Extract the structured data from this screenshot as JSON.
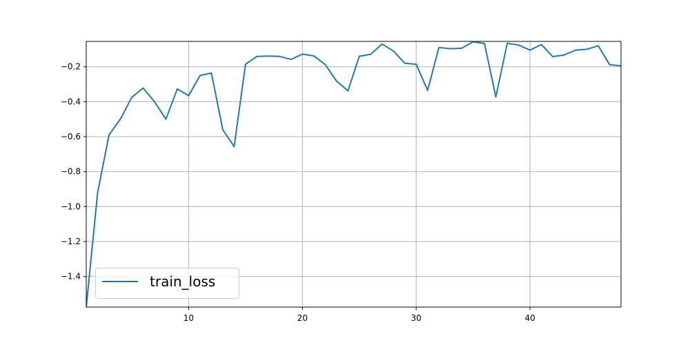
{
  "chart_data": {
    "type": "line",
    "title": "",
    "xlabel": "",
    "ylabel": "",
    "xlim": [
      1,
      48
    ],
    "ylim": [
      -1.575,
      -0.055
    ],
    "xticks": [
      10,
      20,
      30,
      40
    ],
    "yticks": [
      -1.4,
      -1.2,
      -1.0,
      -0.8,
      -0.6,
      -0.4,
      -0.2
    ],
    "ytick_labels": [
      "−1.4",
      "−1.2",
      "−1.0",
      "−0.8",
      "−0.6",
      "−0.4",
      "−0.2"
    ],
    "grid": true,
    "legend_position": "lower-left",
    "series": [
      {
        "name": "train_loss",
        "color": "#1f77b4",
        "x": [
          1,
          2,
          3,
          4,
          5,
          6,
          7,
          8,
          9,
          10,
          11,
          12,
          13,
          14,
          15,
          16,
          17,
          18,
          19,
          20,
          21,
          22,
          23,
          24,
          25,
          26,
          27,
          28,
          29,
          30,
          31,
          32,
          33,
          34,
          35,
          36,
          37,
          38,
          39,
          40,
          41,
          42,
          43,
          44,
          45,
          46,
          47,
          48
        ],
        "y": [
          -1.575,
          -0.92,
          -0.59,
          -0.5,
          -0.375,
          -0.322,
          -0.4,
          -0.5,
          -0.327,
          -0.366,
          -0.25,
          -0.236,
          -0.56,
          -0.657,
          -0.185,
          -0.141,
          -0.139,
          -0.141,
          -0.158,
          -0.128,
          -0.138,
          -0.187,
          -0.282,
          -0.338,
          -0.14,
          -0.129,
          -0.07,
          -0.11,
          -0.18,
          -0.186,
          -0.335,
          -0.09,
          -0.097,
          -0.094,
          -0.057,
          -0.067,
          -0.373,
          -0.066,
          -0.076,
          -0.105,
          -0.073,
          -0.142,
          -0.133,
          -0.105,
          -0.1,
          -0.08,
          -0.188,
          -0.195
        ]
      }
    ]
  }
}
